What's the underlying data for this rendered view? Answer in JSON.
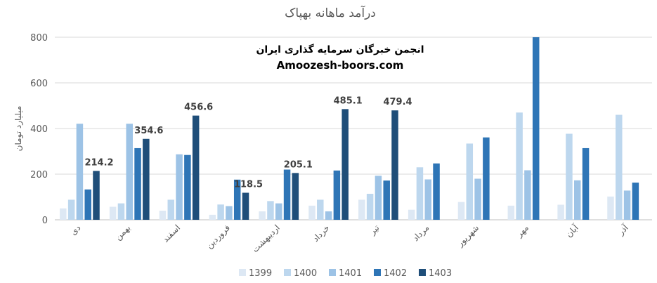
{
  "chart_data": {
    "type": "bar",
    "title": "درآمد ماهانه بهپاک",
    "ylabel": "میلیارد تومان",
    "xlabel": "",
    "ylim": [
      0,
      800
    ],
    "yticks": [
      0,
      200,
      400,
      600,
      800
    ],
    "grid": true,
    "legend_position": "bottom",
    "categories": [
      "دی",
      "بهمن",
      "اسفند",
      "فروردین",
      "اردیبهشت",
      "خرداد",
      "تیر",
      "مرداد",
      "شهریور",
      "مهر",
      "آبان",
      "آذر"
    ],
    "series": [
      {
        "name": "1399",
        "color": "#dde8f4",
        "values": [
          50,
          57,
          40,
          22,
          37,
          62,
          88,
          44,
          78,
          62,
          66,
          102
        ]
      },
      {
        "name": "1400",
        "color": "#bdd7ee",
        "values": [
          88,
          72,
          88,
          67,
          82,
          88,
          114,
          230,
          334,
          470,
          377,
          460
        ]
      },
      {
        "name": "1401",
        "color": "#9dc3e6",
        "values": [
          421,
          421,
          287,
          60,
          72,
          37,
          193,
          177,
          180,
          217,
          173,
          128
        ]
      },
      {
        "name": "1402",
        "color": "#2e75b6",
        "values": [
          133,
          314,
          284,
          176,
          220,
          216,
          172,
          247,
          361,
          800,
          314,
          163
        ]
      },
      {
        "name": "1403",
        "color": "#1f4e79",
        "values": [
          214.2,
          354.6,
          456.6,
          118.5,
          205.1,
          485.1,
          479.4,
          null,
          null,
          null,
          null,
          null
        ]
      }
    ],
    "data_labels": [
      {
        "category_index": 0,
        "series": "1403",
        "text": "214.2"
      },
      {
        "category_index": 1,
        "series": "1403",
        "text": "354.6"
      },
      {
        "category_index": 2,
        "series": "1403",
        "text": "456.6"
      },
      {
        "category_index": 3,
        "series": "1403",
        "text": "118.5"
      },
      {
        "category_index": 4,
        "series": "1403",
        "text": "205.1"
      },
      {
        "category_index": 5,
        "series": "1403",
        "text": "485.1"
      },
      {
        "category_index": 6,
        "series": "1403",
        "text": "479.4"
      }
    ]
  },
  "watermark": {
    "line1": "انجمن خبرگان سرمایه گذاری ایران",
    "line2": "Amoozesh-boors.com"
  }
}
